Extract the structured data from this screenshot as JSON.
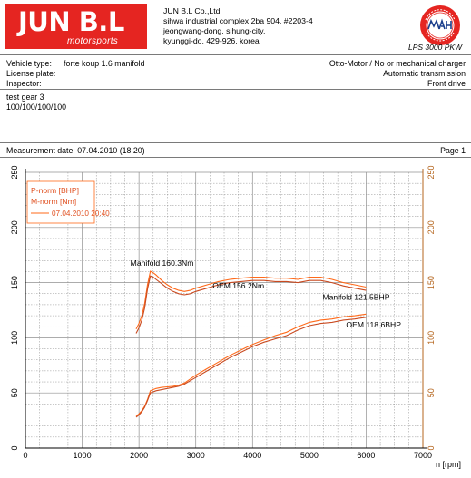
{
  "header": {
    "logo_main": "JUN B.L",
    "logo_sub": "motorsports",
    "company_lines": [
      "JUN B.L Co.,Ltd",
      "sihwa industrial complex 2ba 904, #2203-4",
      "jeongwang-dong, sihung-city,",
      "kyunggi-do, 429-926, korea"
    ],
    "seal_caption": "LPS 3000 PKW",
    "seal_text": "MAHA Maschinenbau Haldenwang"
  },
  "vehicle": {
    "type_label": "Vehicle type:",
    "type_value": "forte koup 1.6 manifold",
    "plate_label": "License plate:",
    "inspector_label": "Inspector:",
    "engine": "Otto-Motor / No or mechanical charger",
    "transmission": "Automatic transmission",
    "drive": "Front drive"
  },
  "test": {
    "name": "test gear 3",
    "values": "100/100/100/100"
  },
  "measurement": {
    "date_text": "Measurement date: 07.04.2010 (18:20)",
    "page_text": "Page 1"
  },
  "colors": {
    "brand_red": "#e52521",
    "series_a": "#ff6a1a",
    "series_b": "#c94a20",
    "right_axis": "#b5651d",
    "grid": "#909090"
  },
  "chart_data": {
    "type": "line",
    "xlabel": "n [rpm]",
    "xlim": [
      0,
      7000
    ],
    "ylim": [
      0,
      250
    ],
    "ylim_right": [
      0,
      250
    ],
    "xticks": [
      0,
      1000,
      2000,
      3000,
      4000,
      5000,
      6000,
      7000
    ],
    "yticks": [
      0,
      50,
      100,
      150,
      200,
      250
    ],
    "grid": true,
    "legend": {
      "position": "top-left",
      "entries": [
        "P-norm [BHP]",
        "M-norm [Nm]",
        "07.04.2010 20:40"
      ]
    },
    "annotations": [
      {
        "text": "Manifold 160.3Nm",
        "x": 2200,
        "y": 160.3
      },
      {
        "text": "OEM 156.2Nm",
        "x": 4000,
        "y": 156.2
      },
      {
        "text": "Manifold 121.5BHP",
        "x": 6000,
        "y": 121.5
      },
      {
        "text": "OEM 118.6BHP",
        "x": 6000,
        "y": 118.6
      }
    ],
    "series": [
      {
        "name": "Manifold",
        "quantity": "torque",
        "x": [
          1950,
          2000,
          2050,
          2100,
          2150,
          2200,
          2250,
          2300,
          2400,
          2500,
          2600,
          2700,
          2800,
          2900,
          3000,
          3200,
          3400,
          3600,
          3800,
          4000,
          4200,
          4400,
          4600,
          4800,
          5000,
          5200,
          5400,
          5600,
          5800,
          6000
        ],
        "y": [
          108,
          113,
          120,
          131,
          148,
          160.3,
          159,
          157,
          152,
          148,
          145,
          143,
          142,
          143,
          145,
          148,
          151,
          153,
          154,
          155,
          155,
          154,
          154,
          153,
          155,
          155,
          153,
          150,
          148,
          146
        ]
      },
      {
        "name": "OEM",
        "quantity": "torque",
        "x": [
          1950,
          2000,
          2050,
          2100,
          2150,
          2200,
          2250,
          2300,
          2400,
          2500,
          2600,
          2700,
          2800,
          2900,
          3000,
          3200,
          3400,
          3600,
          3800,
          4000,
          4200,
          4400,
          4600,
          4800,
          5000,
          5200,
          5400,
          5600,
          5800,
          6000
        ],
        "y": [
          104,
          109,
          116,
          127,
          144,
          156,
          155,
          153,
          149,
          145,
          142,
          140,
          139,
          140,
          142,
          145,
          148,
          150,
          151,
          152,
          152,
          151,
          151,
          150,
          152,
          152,
          150,
          147,
          145,
          143
        ]
      },
      {
        "name": "Manifold",
        "quantity": "power",
        "x": [
          1950,
          2000,
          2050,
          2100,
          2150,
          2200,
          2300,
          2400,
          2500,
          2600,
          2700,
          2800,
          3000,
          3200,
          3400,
          3600,
          3800,
          4000,
          4200,
          4400,
          4600,
          4800,
          5000,
          5200,
          5400,
          5600,
          5800,
          6000
        ],
        "y": [
          29,
          31,
          34,
          38,
          44,
          52,
          54,
          55,
          55.5,
          56,
          57,
          59,
          66,
          72,
          78,
          84,
          89,
          94,
          98,
          102,
          105,
          110,
          114,
          116,
          117,
          119,
          120,
          121.5
        ]
      },
      {
        "name": "OEM",
        "quantity": "power",
        "x": [
          1950,
          2000,
          2050,
          2100,
          2150,
          2200,
          2300,
          2400,
          2500,
          2600,
          2700,
          2800,
          3000,
          3200,
          3400,
          3600,
          3800,
          4000,
          4200,
          4400,
          4600,
          4800,
          5000,
          5200,
          5400,
          5600,
          5800,
          6000
        ],
        "y": [
          28,
          30,
          33,
          37,
          43,
          50,
          52,
          53,
          54,
          55,
          56,
          58,
          64,
          70,
          76,
          82,
          87,
          92,
          96,
          99,
          102,
          107,
          111,
          113,
          114,
          116,
          117,
          118.6
        ]
      }
    ]
  }
}
